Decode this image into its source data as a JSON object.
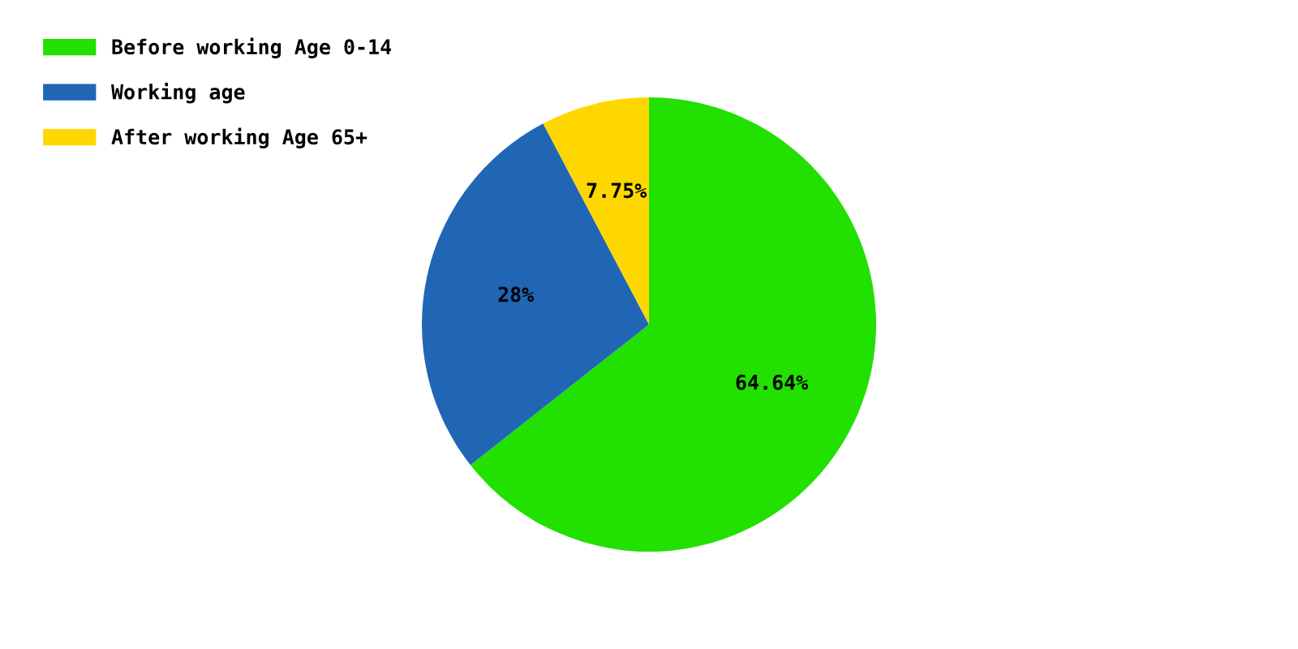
{
  "chart_data": {
    "type": "pie",
    "categories": [
      "Before working Age 0-14",
      "Working age",
      "After working Age 65+"
    ],
    "values": [
      64.64,
      28,
      7.75
    ],
    "value_labels": [
      "64.64%",
      "28%",
      "7.75%"
    ],
    "colors": [
      "#22e000",
      "#2066b4",
      "#ffd700"
    ],
    "legend": "top left"
  }
}
